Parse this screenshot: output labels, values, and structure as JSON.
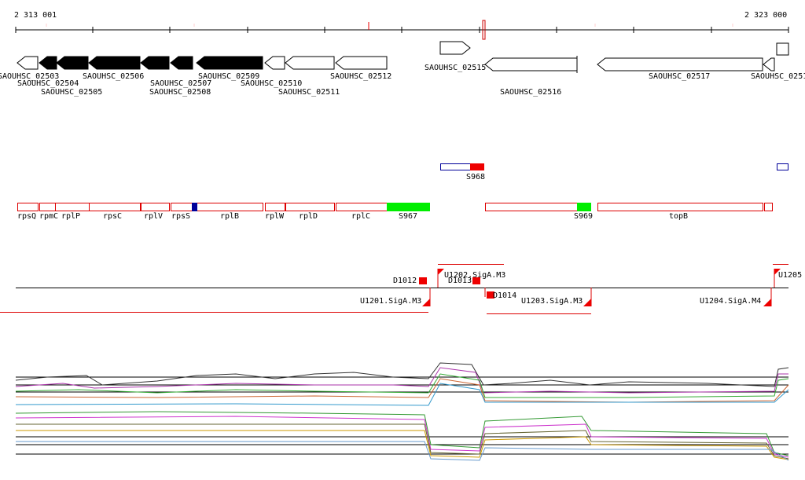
{
  "ruler": {
    "start": "2 313 001",
    "end": "2 323 000"
  },
  "genes": [
    "SAOUHSC_02503",
    "SAOUHSC_02504",
    "SAOUHSC_02505",
    "SAOUHSC_02506",
    "SAOUHSC_02507",
    "SAOUHSC_02508",
    "SAOUHSC_02509",
    "SAOUHSC_02510",
    "SAOUHSC_02511",
    "SAOUHSC_02512",
    "SAOUHSC_02515",
    "SAOUHSC_02516",
    "SAOUHSC_02517",
    "SAOUHSC_0251"
  ],
  "features": [
    "S968"
  ],
  "operon_genes": [
    "rpsQ",
    "rpmC",
    "rplP",
    "rpsC",
    "rplV",
    "rpsS",
    "rplB",
    "rplW",
    "rplD",
    "rplC",
    "S967",
    "S969",
    "topB"
  ],
  "transcripts": [
    "D1012",
    "U1202.SigA.M3",
    "D1013",
    "D1014",
    "U1201.SigA.M3",
    "U1203.SigA.M3",
    "U1204.SigA.M4",
    "U1205"
  ]
}
